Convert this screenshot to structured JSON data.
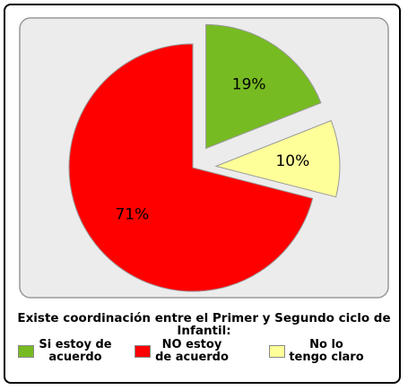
{
  "chart_data": {
    "type": "pie",
    "title": "Existe coordinación entre el Primer y Segundo ciclo de Infantil:",
    "categories": [
      "Si estoy de acuerdo",
      "NO estoy de acuerdo",
      "No lo tengo claro"
    ],
    "values": [
      19,
      71,
      10
    ],
    "value_labels": [
      "19%",
      "71%",
      "10%"
    ],
    "colors": [
      "#77bb22",
      "#ff0000",
      "#ffff99"
    ],
    "exploded": [
      true,
      false,
      true
    ]
  }
}
